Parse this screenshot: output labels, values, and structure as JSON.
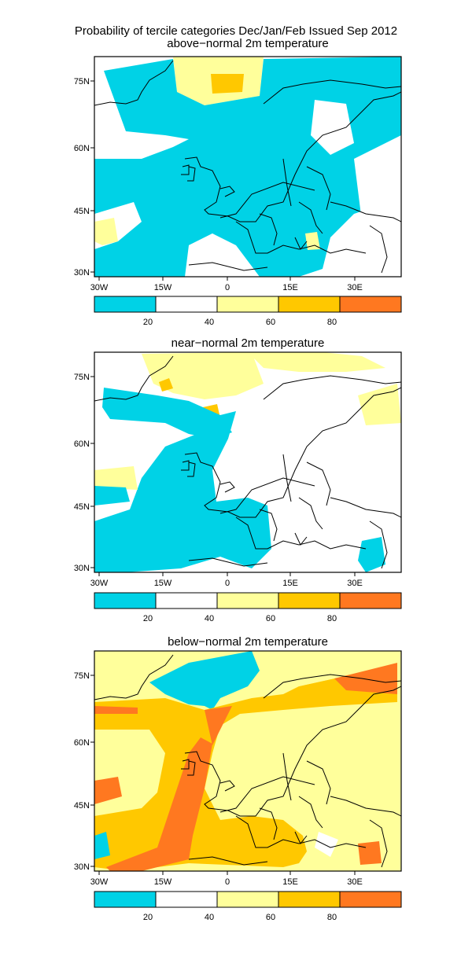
{
  "title": "Probability of tercile categories Dec/Jan/Feb Issued Sep 2012",
  "colors": {
    "lt20": "#00d2e6",
    "p20_40": "#ffffff",
    "p40_60": "#ffff9b",
    "p60_80": "#ffc800",
    "gt80": "#ff7820",
    "coast": "#000000"
  },
  "axes": {
    "lon_ticks": [
      "30W",
      "15W",
      "0",
      "15E",
      "30E"
    ],
    "lat_ticks": [
      "75N",
      "60N",
      "45N",
      "30N"
    ]
  },
  "colorbar": {
    "labels": [
      "20",
      "40",
      "60",
      "80"
    ]
  },
  "panels": [
    {
      "id": "above",
      "title": "above−normal 2m temperature"
    },
    {
      "id": "near",
      "title": "near−normal 2m temperature"
    },
    {
      "id": "below",
      "title": "below−normal 2m temperature"
    }
  ],
  "map_data": {
    "type": "probability-map",
    "region": "Europe / North Atlantic",
    "lon_range": [
      -30,
      40
    ],
    "lat_range": [
      29,
      82
    ],
    "categories": [
      "<20",
      "20-40",
      "40-60",
      "60-80",
      ">80"
    ]
  }
}
